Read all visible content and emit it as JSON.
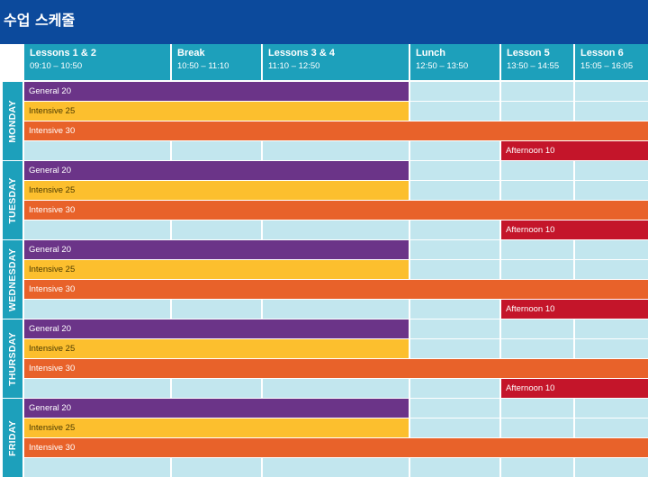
{
  "page": {
    "title": "수업 스케줄"
  },
  "columns": [
    {
      "name": "Lessons 1 & 2",
      "time": "09:10 – 10:50"
    },
    {
      "name": "Break",
      "time": "10:50 – 11:10"
    },
    {
      "name": "Lessons 3 & 4",
      "time": "11:10 – 12:50"
    },
    {
      "name": "Lunch",
      "time": "12:50 – 13:50"
    },
    {
      "name": "Lesson 5",
      "time": "13:50 – 14:55"
    },
    {
      "name": "Lesson 6",
      "time": "15:05 – 16:05"
    }
  ],
  "days": [
    {
      "label": "MONDAY",
      "rows": [
        "General 20",
        "Intensive 25",
        "Intensive 30",
        "Afternoon 10"
      ]
    },
    {
      "label": "TUESDAY",
      "rows": [
        "General 20",
        "Intensive 25",
        "Intensive 30",
        "Afternoon 10"
      ]
    },
    {
      "label": "WEDNESDAY",
      "rows": [
        "General 20",
        "Intensive 25",
        "Intensive 30",
        "Afternoon 10"
      ]
    },
    {
      "label": "THURSDAY",
      "rows": [
        "General 20",
        "Intensive 25",
        "Intensive 30",
        "Afternoon 10"
      ]
    },
    {
      "label": "FRIDAY",
      "rows": [
        "General 20",
        "Intensive 25",
        "Intensive 30"
      ]
    }
  ],
  "colors": {
    "header": "#0c4a9c",
    "column_header": "#1da0bb",
    "cell": "#c2e6ee",
    "general": "#6b3488",
    "intensive25": "#fcbf2e",
    "intensive30": "#e8622a",
    "afternoon": "#c4152a"
  }
}
